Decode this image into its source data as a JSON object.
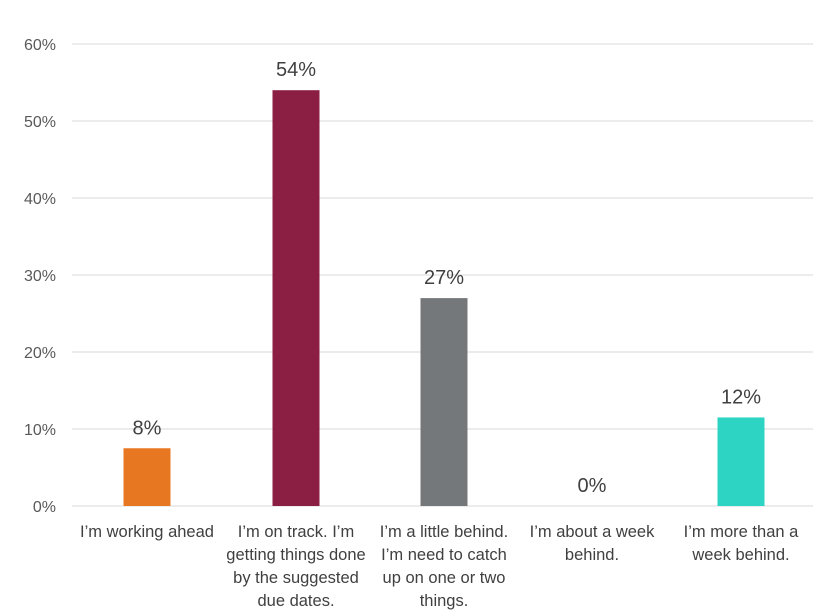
{
  "chart_data": {
    "type": "bar",
    "title": "",
    "xlabel": "",
    "ylabel": "",
    "ylim": [
      0,
      60
    ],
    "y_ticks": [
      "0%",
      "10%",
      "20%",
      "30%",
      "40%",
      "50%",
      "60%"
    ],
    "y_tick_values": [
      0,
      10,
      20,
      30,
      40,
      50,
      60
    ],
    "grid": true,
    "legend": "none",
    "categories": [
      [
        "I’m working ahead"
      ],
      [
        "I’m on track. I’m",
        "getting things done",
        "by the suggested",
        "due dates."
      ],
      [
        "I’m a little behind.",
        "I’m need to catch",
        "up on one or two",
        "things."
      ],
      [
        "I’m about a week",
        "behind."
      ],
      [
        "I’m more than a",
        "week behind."
      ]
    ],
    "values": [
      7.5,
      54,
      27,
      0,
      11.5
    ],
    "data_labels": [
      "8%",
      "54%",
      "27%",
      "0%",
      "12%"
    ],
    "colors": [
      "#e87722",
      "#8b1e43",
      "#75787b",
      "#e6e6e6",
      "#2dd4c4"
    ]
  }
}
